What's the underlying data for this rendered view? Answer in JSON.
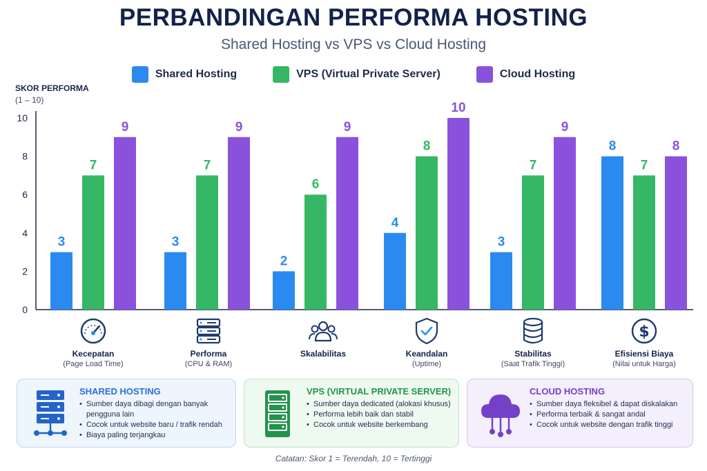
{
  "title": "PERBANDINGAN PERFORMA HOSTING",
  "subtitle": "Shared Hosting vs VPS vs Cloud Hosting",
  "legend": [
    {
      "label": "Shared Hosting",
      "color": "#2b8af0"
    },
    {
      "label": "VPS (Virtual Private Server)",
      "color": "#35b765"
    },
    {
      "label": "Cloud Hosting",
      "color": "#8a52dc"
    }
  ],
  "yaxis": {
    "title": "SKOR PERFORMA",
    "subtitle": "(1 – 10)"
  },
  "categories": [
    {
      "label": "Kecepatan",
      "sub": "(Page Load Time)",
      "icon": "speedometer-icon"
    },
    {
      "label": "Performa",
      "sub": "(CPU & RAM)",
      "icon": "server-icon"
    },
    {
      "label": "Skalabilitas",
      "sub": "",
      "icon": "users-group-icon"
    },
    {
      "label": "Keandalan",
      "sub": "(Uptime)",
      "icon": "shield-check-icon"
    },
    {
      "label": "Stabilitas",
      "sub": "(Saat Trafik Tinggi)",
      "icon": "database-icon"
    },
    {
      "label": "Efisiensi Biaya",
      "sub": "(Nilai untuk Harga)",
      "icon": "dollar-coin-icon"
    }
  ],
  "chart_data": {
    "type": "bar",
    "categories": [
      "Kecepatan",
      "Performa",
      "Skalabilitas",
      "Keandalan",
      "Stabilitas",
      "Efisiensi Biaya"
    ],
    "series": [
      {
        "name": "Shared Hosting",
        "color": "#2b8af0",
        "values": [
          3,
          3,
          2,
          4,
          3,
          8
        ]
      },
      {
        "name": "VPS (Virtual Private Server)",
        "color": "#35b765",
        "values": [
          7,
          7,
          6,
          8,
          7,
          7
        ]
      },
      {
        "name": "Cloud Hosting",
        "color": "#8a52dc",
        "values": [
          9,
          9,
          9,
          10,
          9,
          8
        ]
      }
    ],
    "title": "PERBANDINGAN PERFORMA HOSTING",
    "subtitle": "Shared Hosting vs VPS vs Cloud Hosting",
    "ylabel": "SKOR PERFORMA (1 – 10)",
    "ylim": [
      0,
      10
    ],
    "yticks": [
      0,
      2,
      4,
      6,
      8,
      10
    ],
    "grid": false,
    "legend_position": "top"
  },
  "cards": [
    {
      "title": "SHARED HOSTING",
      "color": "#2b6fd6",
      "bg": "#eef5fd",
      "border": "#bcd6f4",
      "icon": "server-network-icon",
      "items": [
        "Sumber daya dibagi dengan banyak pengguna lain",
        "Cocok untuk website baru / trafik rendah",
        "Biaya paling terjangkau"
      ]
    },
    {
      "title": "VPS (VIRTUAL PRIVATE SERVER)",
      "color": "#23934c",
      "bg": "#eef9f0",
      "border": "#bde5c8",
      "icon": "server-rack-icon",
      "items": [
        "Sumber daya dedicated (alokasi khusus)",
        "Performa lebih baik dan stabil",
        "Cocok untuk website berkembang"
      ]
    },
    {
      "title": "CLOUD HOSTING",
      "color": "#7440c8",
      "bg": "#f4effc",
      "border": "#d6c6f1",
      "icon": "cloud-network-icon",
      "items": [
        "Sumber daya fleksibel & dapat diskalakan",
        "Performa terbaik & sangat andal",
        "Cocok untuk website dengan trafik tinggi"
      ]
    }
  ],
  "footnote": "Catatan: Skor 1 = Terendah, 10 = Tertinggi"
}
